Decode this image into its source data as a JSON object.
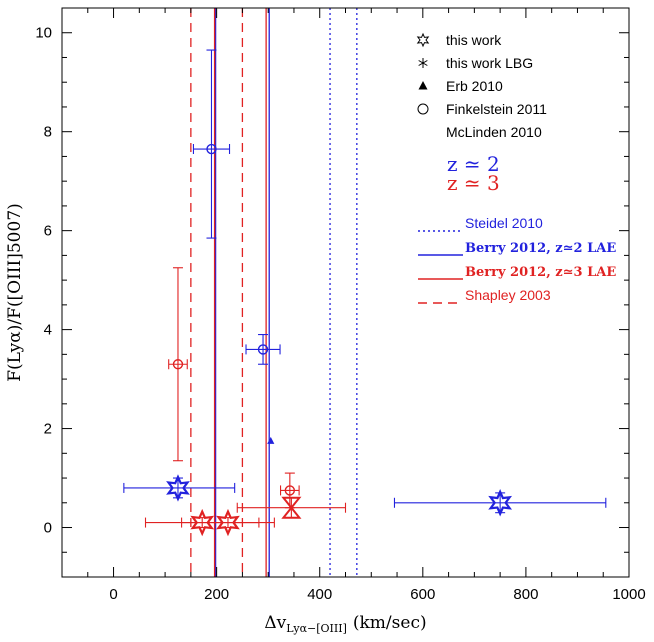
{
  "chart_data": {
    "type": "scatter",
    "xlabel": "Δv",
    "xlabel_sub": "Lyα−[OIII]",
    "xlabel_unit": "(km/sec)",
    "ylabel": "F(Lyα)/F([OIII]5007)",
    "xlim": [
      -100,
      1000
    ],
    "ylim": [
      -1,
      10.5
    ],
    "x_ticks": [
      0,
      200,
      400,
      600,
      800,
      1000
    ],
    "y_ticks": [
      0,
      2,
      4,
      6,
      8,
      10
    ],
    "colors": {
      "blue": "#2222dd",
      "red": "#e02222",
      "black": "#000000"
    },
    "legend": {
      "placement": "top-right",
      "symbols": [
        {
          "label": "this work",
          "icon": "open-star-icon"
        },
        {
          "label": "this work LBG",
          "icon": "asterisk-icon"
        },
        {
          "label": "Erb 2010",
          "icon": "filled-triangle-icon"
        },
        {
          "label": "Finkelstein 2011",
          "icon": "open-circle-icon"
        },
        {
          "label": "McLinden 2010",
          "icon": "hourglass-icon"
        }
      ],
      "redshift": [
        {
          "label": "z ≃ 2",
          "color": "#2222dd"
        },
        {
          "label": "z ≃ 3",
          "color": "#e02222"
        }
      ],
      "lines": [
        {
          "label": "Steidel 2010",
          "style": "dotted",
          "color": "#2222dd"
        },
        {
          "label": "Berry 2012, z≃2 LAE",
          "style": "solid",
          "color": "#2222dd"
        },
        {
          "label": "Berry 2012, z≃3 LAE",
          "style": "solid",
          "color": "#e02222"
        },
        {
          "label": "Shapley 2003",
          "style": "dashed",
          "color": "#e02222"
        }
      ]
    },
    "vlines": [
      {
        "x": 420,
        "style": "dotted",
        "color": "#2222dd"
      },
      {
        "x": 472,
        "style": "dotted",
        "color": "#2222dd"
      },
      {
        "x": 198,
        "style": "solid",
        "color": "#2222dd"
      },
      {
        "x": 302,
        "style": "solid",
        "color": "#2222dd"
      },
      {
        "x": 196,
        "style": "solid",
        "color": "#e02222"
      },
      {
        "x": 296,
        "style": "solid",
        "color": "#e02222"
      },
      {
        "x": 150,
        "style": "dashed",
        "color": "#e02222"
      },
      {
        "x": 250,
        "style": "dashed",
        "color": "#e02222"
      }
    ],
    "points": [
      {
        "x": 190,
        "y": 7.65,
        "xerr": [
          35,
          35
        ],
        "yerr": [
          1.8,
          2.0
        ],
        "marker": "circle",
        "color": "#2222dd"
      },
      {
        "x": 290,
        "y": 3.6,
        "xerr": [
          33,
          33
        ],
        "yerr": [
          0.3,
          0.3
        ],
        "marker": "circle",
        "color": "#2222dd"
      },
      {
        "x": 305,
        "y": 1.75,
        "marker": "triangle",
        "color": "#2222dd"
      },
      {
        "x": 125,
        "y": 0.8,
        "xerr": [
          105,
          110
        ],
        "yerr": [
          0.2,
          0.2
        ],
        "marker": "star",
        "color": "#2222dd"
      },
      {
        "x": 750,
        "y": 0.5,
        "xerr": [
          205,
          205
        ],
        "yerr": [
          0.2,
          0.2
        ],
        "marker": "star",
        "color": "#2222dd"
      },
      {
        "x": 125,
        "y": 3.3,
        "xerr": [
          18,
          18
        ],
        "yerr": [
          1.95,
          1.95
        ],
        "marker": "circle",
        "color": "#e02222"
      },
      {
        "x": 342,
        "y": 0.75,
        "xerr": [
          18,
          18
        ],
        "yerr": [
          0.35,
          0.35
        ],
        "marker": "circle",
        "color": "#e02222"
      },
      {
        "x": 345,
        "y": 0.4,
        "xerr": [
          105,
          105
        ],
        "yerr": [
          0.2,
          0.2
        ],
        "marker": "hourglass",
        "color": "#e02222"
      },
      {
        "x": 172,
        "y": 0.1,
        "xerr": [
          110,
          110
        ],
        "yerr": [
          0.1,
          0.1
        ],
        "marker": "star",
        "color": "#e02222"
      },
      {
        "x": 222,
        "y": 0.1,
        "xerr": [
          90,
          90
        ],
        "yerr": [
          0.1,
          0.1
        ],
        "marker": "star",
        "color": "#e02222"
      }
    ]
  }
}
